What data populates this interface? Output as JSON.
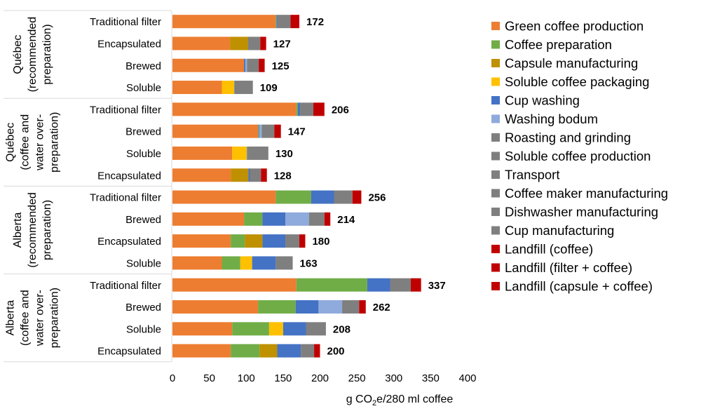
{
  "chart_data": {
    "type": "bar",
    "orientation": "horizontal",
    "stacked": true,
    "title": "",
    "xlabel_parts": [
      "g CO",
      "2",
      "e/280 ml coffee"
    ],
    "xlim": [
      0,
      400
    ],
    "xticks": [
      0,
      50,
      100,
      150,
      200,
      250,
      300,
      350,
      400
    ],
    "grid": false,
    "legend_position": "right",
    "groups": [
      {
        "label_lines": [
          "Québec",
          "(recommended",
          "preparation)"
        ],
        "rows": [
          0,
          1,
          2,
          3
        ]
      },
      {
        "label_lines": [
          "Québec",
          "(coffee and",
          "water over-",
          "preparation)"
        ],
        "rows": [
          4,
          5,
          6,
          7
        ]
      },
      {
        "label_lines": [
          "Alberta",
          "(recommended",
          "preparation)"
        ],
        "rows": [
          8,
          9,
          10,
          11
        ]
      },
      {
        "label_lines": [
          "Alberta",
          "(coffee and",
          "water over-",
          "preparation)"
        ],
        "rows": [
          12,
          13,
          14,
          15
        ]
      }
    ],
    "categories": [
      "Traditional filter",
      "Encapsulated",
      "Brewed",
      "Soluble",
      "Traditional filter",
      "Brewed",
      "Soluble",
      "Encapsulated",
      "Traditional filter",
      "Brewed",
      "Encapsulated",
      "Soluble",
      "Traditional filter",
      "Brewed",
      "Soluble",
      "Encapsulated"
    ],
    "totals": [
      172,
      127,
      125,
      109,
      206,
      147,
      130,
      128,
      256,
      214,
      180,
      163,
      337,
      262,
      208,
      200
    ],
    "series": [
      {
        "name": "Green coffee production",
        "color": "#ED7D31",
        "values": [
          140,
          78,
          97,
          67,
          168,
          116,
          81,
          79,
          140,
          97,
          79,
          67,
          168,
          116,
          81,
          79
        ]
      },
      {
        "name": "Coffee preparation",
        "color": "#70AD47",
        "values": [
          1,
          0,
          0,
          0,
          2,
          1,
          0,
          0,
          48,
          25,
          19,
          25,
          96,
          51,
          50,
          39
        ]
      },
      {
        "name": "Capsule manufacturing",
        "color": "#BF9000",
        "values": [
          0,
          25,
          0,
          0,
          0,
          0,
          0,
          24,
          0,
          0,
          24,
          0,
          0,
          0,
          0,
          24
        ]
      },
      {
        "name": "Soluble coffee packaging",
        "color": "#FFC000",
        "values": [
          0,
          0,
          0,
          17,
          0,
          0,
          20,
          0,
          0,
          0,
          0,
          16,
          0,
          0,
          19,
          0
        ]
      },
      {
        "name": "Cup washing",
        "color": "#4472C4",
        "values": [
          1,
          1,
          2,
          1,
          3,
          1,
          1,
          2,
          31,
          31,
          31,
          32,
          31,
          31,
          31,
          32
        ]
      },
      {
        "name": "Washing bodum",
        "color": "#8FAADC",
        "values": [
          0,
          0,
          2,
          0,
          0,
          3,
          0,
          0,
          0,
          32,
          0,
          0,
          0,
          32,
          0,
          0
        ]
      },
      {
        "name": "Roasting and grinding",
        "color": "#7F7F7F",
        "values": [
          18,
          15,
          16,
          0,
          18,
          17,
          0,
          15,
          25,
          21,
          19,
          0,
          28,
          23,
          0,
          18
        ]
      },
      {
        "name": "Soluble coffee production",
        "color": "#7F7F7F",
        "values": [
          0,
          0,
          0,
          24,
          0,
          0,
          28,
          0,
          0,
          0,
          0,
          23,
          0,
          0,
          27,
          0
        ]
      },
      {
        "name": "Transport",
        "color": "#7F7F7F",
        "values": [
          0,
          0,
          0,
          0,
          0,
          0,
          0,
          0,
          0,
          0,
          0,
          0,
          0,
          0,
          0,
          0
        ]
      },
      {
        "name": "Coffee maker manufacturing",
        "color": "#7F7F7F",
        "values": [
          0,
          0,
          0,
          0,
          0,
          0,
          0,
          0,
          0,
          0,
          0,
          0,
          0,
          0,
          0,
          0
        ]
      },
      {
        "name": "Dishwasher manufacturing",
        "color": "#7F7F7F",
        "values": [
          0,
          0,
          0,
          0,
          0,
          0,
          0,
          0,
          0,
          0,
          0,
          0,
          0,
          0,
          0,
          0
        ]
      },
      {
        "name": "Cup manufacturing",
        "color": "#7F7F7F",
        "values": [
          0,
          0,
          0,
          0,
          0,
          0,
          0,
          0,
          0,
          0,
          0,
          0,
          0,
          0,
          0,
          0
        ]
      },
      {
        "name": "Landfill (coffee)",
        "color": "#C00000",
        "values": [
          0,
          0,
          8,
          0,
          0,
          9,
          0,
          0,
          0,
          8,
          0,
          0,
          0,
          9,
          0,
          0
        ]
      },
      {
        "name": "Landfill (filter + coffee)",
        "color": "#C00000",
        "values": [
          12,
          0,
          0,
          0,
          15,
          0,
          0,
          0,
          12,
          0,
          0,
          0,
          14,
          0,
          0,
          0
        ]
      },
      {
        "name": "Landfill (capsule + coffee)",
        "color": "#C00000",
        "values": [
          0,
          8,
          0,
          0,
          0,
          0,
          0,
          8,
          0,
          0,
          8,
          0,
          0,
          0,
          0,
          8
        ]
      }
    ]
  }
}
